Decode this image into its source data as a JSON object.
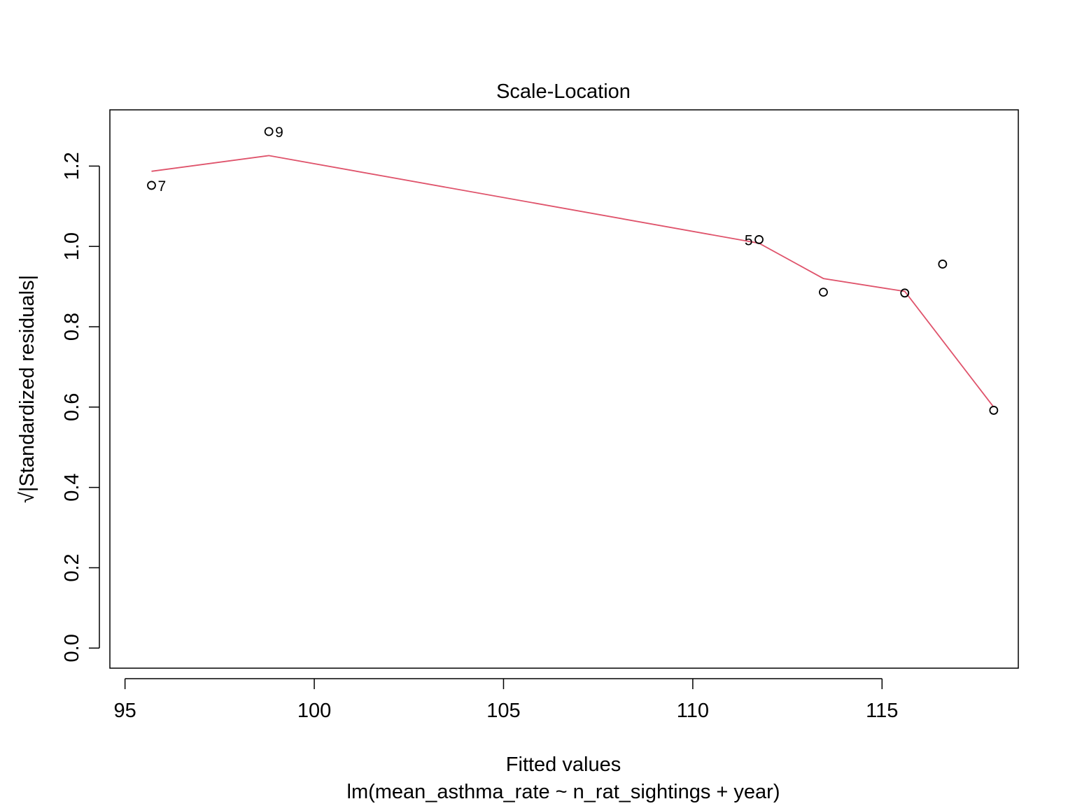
{
  "chart_data": {
    "type": "scatter",
    "title": "Scale-Location",
    "xlabel": "Fitted values",
    "subtitle": "lm(mean_asthma_rate ~ n_rat_sightings + year)",
    "ylabel": "√|Standardized residuals|",
    "xlim": [
      94.6,
      118.6
    ],
    "ylim": [
      -0.05,
      1.34
    ],
    "x_ticks": [
      95,
      100,
      105,
      110,
      115
    ],
    "x_tick_labels": [
      "95",
      "100",
      "105",
      "110",
      "115"
    ],
    "y_ticks": [
      0.0,
      0.2,
      0.4,
      0.6,
      0.8,
      1.0,
      1.2
    ],
    "y_tick_labels": [
      "0.0",
      "0.2",
      "0.4",
      "0.6",
      "0.8",
      "1.0",
      "1.2"
    ],
    "grid": false,
    "points": [
      {
        "x": 95.7,
        "y": 1.152,
        "label": "7",
        "label_side": "right"
      },
      {
        "x": 98.8,
        "y": 1.286,
        "label": "9",
        "label_side": "right"
      },
      {
        "x": 111.75,
        "y": 1.017,
        "label": "5",
        "label_side": "left"
      },
      {
        "x": 113.45,
        "y": 0.886,
        "label": ""
      },
      {
        "x": 115.6,
        "y": 0.884,
        "label": ""
      },
      {
        "x": 116.6,
        "y": 0.956,
        "label": ""
      },
      {
        "x": 117.95,
        "y": 0.592,
        "label": ""
      }
    ],
    "smoother": {
      "color": "#DF536B",
      "x": [
        95.7,
        98.8,
        111.75,
        113.45,
        115.6,
        117.95
      ],
      "y": [
        1.187,
        1.226,
        1.008,
        0.92,
        0.888,
        0.6
      ]
    }
  }
}
